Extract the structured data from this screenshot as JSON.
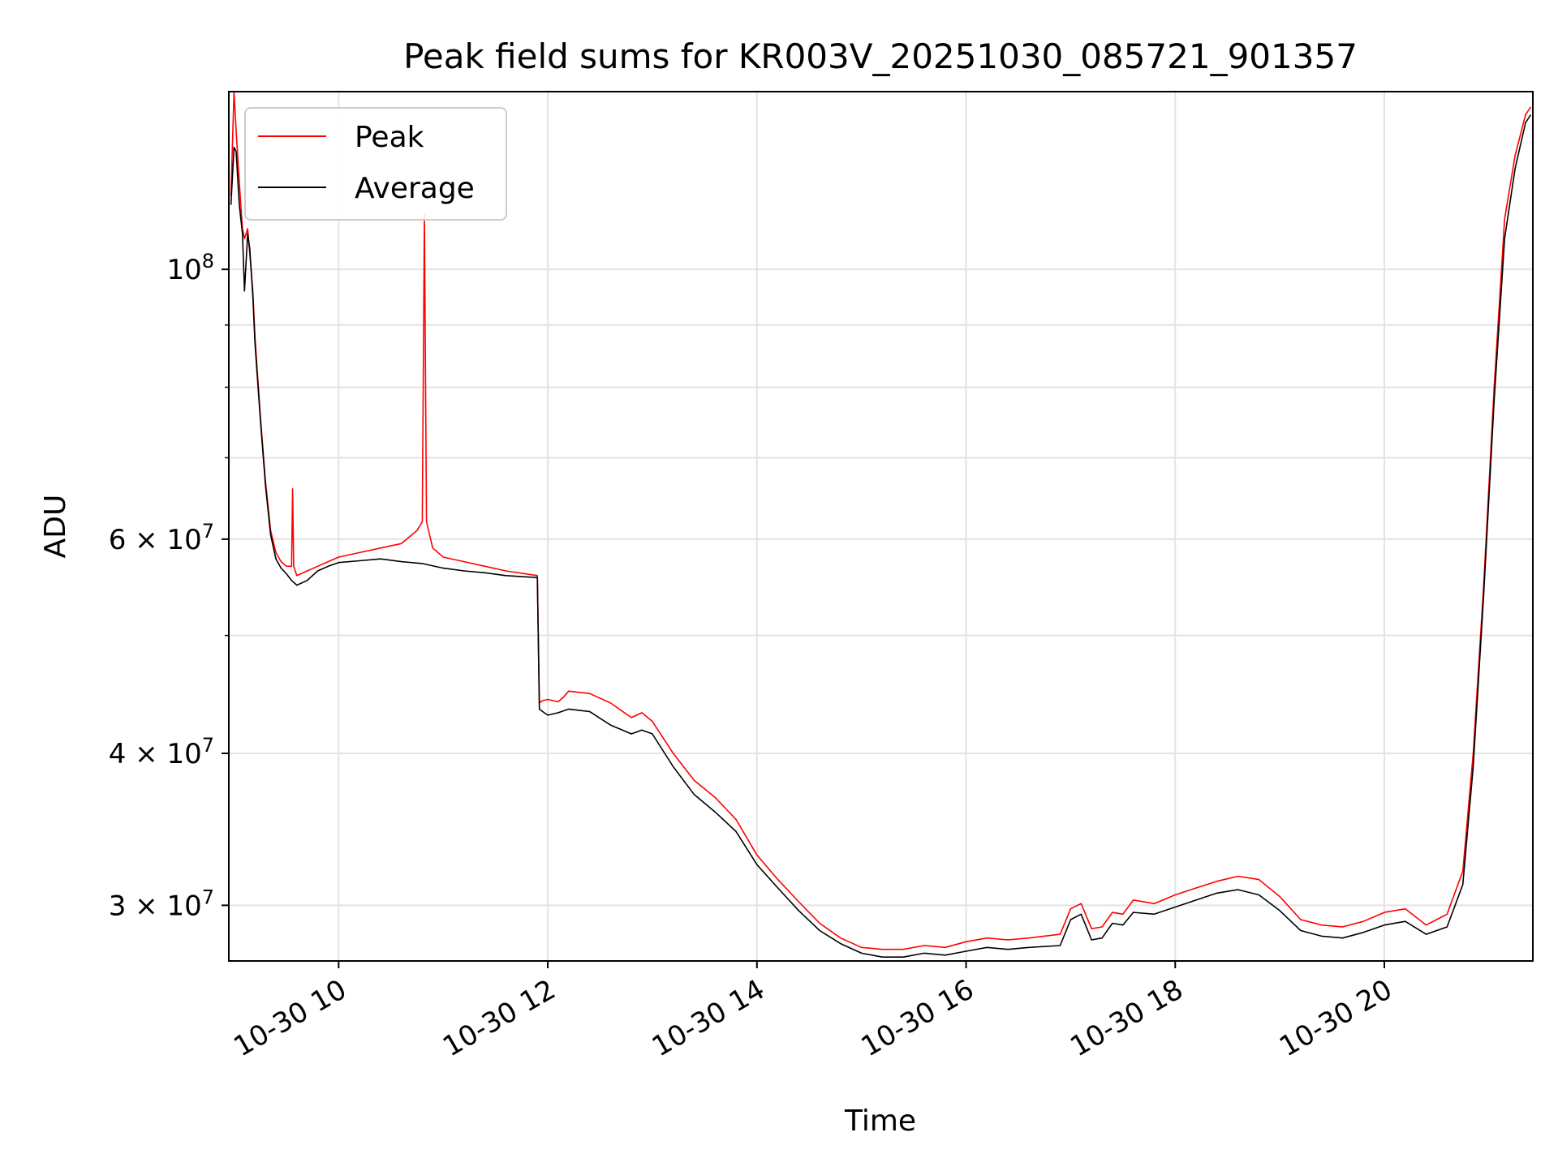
{
  "chart_data": {
    "type": "line",
    "title": "Peak field sums for KR003V_20251030_085721_901357",
    "xlabel": "Time",
    "ylabel": "ADU",
    "yscale": "log",
    "xlim": [
      8.95,
      21.42
    ],
    "ylim": [
      27000000,
      140000000
    ],
    "grid": true,
    "legend_position": "top-left",
    "x_ticks": [
      {
        "value": 10,
        "label": "10-30 10"
      },
      {
        "value": 12,
        "label": "10-30 12"
      },
      {
        "value": 14,
        "label": "10-30 14"
      },
      {
        "value": 16,
        "label": "10-30 16"
      },
      {
        "value": 18,
        "label": "10-30 18"
      },
      {
        "value": 20,
        "label": "10-30 20"
      }
    ],
    "y_ticks": [
      {
        "value": 30000000,
        "base": "3 × 10",
        "exp": "7"
      },
      {
        "value": 40000000,
        "base": "4 × 10",
        "exp": "7"
      },
      {
        "value": 60000000,
        "base": "6 × 10",
        "exp": "7"
      },
      {
        "value": 100000000,
        "base": "10",
        "exp": "8"
      }
    ],
    "y_minor_ticks": [
      50000000,
      70000000,
      80000000,
      90000000
    ],
    "series": [
      {
        "name": "Peak",
        "color": "#ff0000",
        "x": [
          8.97,
          9.0,
          9.02,
          9.05,
          9.08,
          9.1,
          9.13,
          9.15,
          9.18,
          9.2,
          9.25,
          9.3,
          9.35,
          9.4,
          9.45,
          9.5,
          9.55,
          9.56,
          9.57,
          9.6,
          9.7,
          9.8,
          9.9,
          10.0,
          10.2,
          10.4,
          10.6,
          10.75,
          10.8,
          10.82,
          10.84,
          10.9,
          11.0,
          11.2,
          11.4,
          11.6,
          11.9,
          11.92,
          11.95,
          12.0,
          12.1,
          12.15,
          12.2,
          12.4,
          12.6,
          12.8,
          12.9,
          13.0,
          13.2,
          13.4,
          13.6,
          13.8,
          14.0,
          14.2,
          14.4,
          14.6,
          14.8,
          15.0,
          15.2,
          15.4,
          15.6,
          15.8,
          16.0,
          16.2,
          16.4,
          16.6,
          16.9,
          17.0,
          17.1,
          17.2,
          17.3,
          17.4,
          17.5,
          17.6,
          17.8,
          18.0,
          18.2,
          18.4,
          18.6,
          18.8,
          19.0,
          19.2,
          19.4,
          19.6,
          19.8,
          20.0,
          20.2,
          20.4,
          20.6,
          20.75,
          20.85,
          20.95,
          21.05,
          21.15,
          21.25,
          21.35,
          21.4
        ],
        "y": [
          115000000,
          140000000,
          130000000,
          118000000,
          108000000,
          106000000,
          108000000,
          103000000,
          96000000,
          88000000,
          76000000,
          67000000,
          61000000,
          58500000,
          57500000,
          57000000,
          57000000,
          66000000,
          57000000,
          56000000,
          56500000,
          57000000,
          57500000,
          58000000,
          58500000,
          59000000,
          59500000,
          61000000,
          62000000,
          111000000,
          62000000,
          59000000,
          58000000,
          57500000,
          57000000,
          56500000,
          56000000,
          44000000,
          44200000,
          44300000,
          44100000,
          44500000,
          45000000,
          44800000,
          44000000,
          42800000,
          43200000,
          42500000,
          40000000,
          38000000,
          36800000,
          35300000,
          33000000,
          31500000,
          30200000,
          29000000,
          28200000,
          27700000,
          27600000,
          27600000,
          27800000,
          27700000,
          28000000,
          28200000,
          28100000,
          28200000,
          28400000,
          29800000,
          30100000,
          28700000,
          28800000,
          29600000,
          29500000,
          30300000,
          30100000,
          30600000,
          31000000,
          31400000,
          31700000,
          31500000,
          30500000,
          29200000,
          28900000,
          28800000,
          29100000,
          29600000,
          29800000,
          28900000,
          29500000,
          32000000,
          40000000,
          55000000,
          80000000,
          110000000,
          124000000,
          134000000,
          136000000
        ]
      },
      {
        "name": "Average",
        "color": "#000000",
        "x": [
          8.97,
          9.0,
          9.02,
          9.05,
          9.08,
          9.1,
          9.13,
          9.15,
          9.18,
          9.2,
          9.25,
          9.3,
          9.35,
          9.4,
          9.45,
          9.5,
          9.55,
          9.6,
          9.7,
          9.8,
          9.9,
          10.0,
          10.2,
          10.4,
          10.6,
          10.8,
          11.0,
          11.2,
          11.4,
          11.6,
          11.9,
          11.92,
          11.95,
          12.0,
          12.1,
          12.2,
          12.4,
          12.6,
          12.8,
          12.9,
          13.0,
          13.2,
          13.4,
          13.6,
          13.8,
          14.0,
          14.2,
          14.4,
          14.6,
          14.8,
          15.0,
          15.2,
          15.4,
          15.6,
          15.8,
          16.0,
          16.2,
          16.4,
          16.6,
          16.9,
          17.0,
          17.1,
          17.2,
          17.3,
          17.4,
          17.5,
          17.6,
          17.8,
          18.0,
          18.2,
          18.4,
          18.6,
          18.8,
          19.0,
          19.2,
          19.4,
          19.6,
          19.8,
          20.0,
          20.2,
          20.4,
          20.6,
          20.75,
          20.85,
          20.95,
          21.05,
          21.15,
          21.25,
          21.35,
          21.4
        ],
        "y": [
          113000000,
          126000000,
          125000000,
          113000000,
          107000000,
          96000000,
          107000000,
          104000000,
          95000000,
          87000000,
          75500000,
          66500000,
          60500000,
          57800000,
          56800000,
          56200000,
          55500000,
          55000000,
          55500000,
          56500000,
          57000000,
          57400000,
          57600000,
          57800000,
          57500000,
          57300000,
          56800000,
          56500000,
          56300000,
          56000000,
          55800000,
          43500000,
          43300000,
          43000000,
          43200000,
          43500000,
          43300000,
          42200000,
          41500000,
          41800000,
          41500000,
          39000000,
          37000000,
          35800000,
          34500000,
          32400000,
          31000000,
          29700000,
          28600000,
          27900000,
          27400000,
          27200000,
          27200000,
          27400000,
          27300000,
          27500000,
          27700000,
          27600000,
          27700000,
          27800000,
          29200000,
          29500000,
          28100000,
          28200000,
          29000000,
          28900000,
          29600000,
          29500000,
          29900000,
          30300000,
          30700000,
          30900000,
          30600000,
          29700000,
          28600000,
          28300000,
          28200000,
          28500000,
          28900000,
          29100000,
          28400000,
          28800000,
          31200000,
          39000000,
          54000000,
          78000000,
          106000000,
          121000000,
          132000000,
          134000000
        ]
      }
    ]
  }
}
